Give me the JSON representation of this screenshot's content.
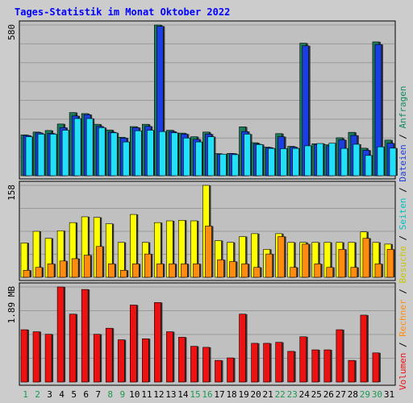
{
  "chart_data": {
    "type": "bar",
    "title": "Tages-Statistik im Monat Oktober 2022",
    "days": [
      "1",
      "2",
      "3",
      "4",
      "5",
      "6",
      "7",
      "8",
      "9",
      "10",
      "11",
      "12",
      "13",
      "14",
      "15",
      "16",
      "17",
      "18",
      "19",
      "20",
      "21",
      "22",
      "23",
      "24",
      "25",
      "26",
      "27",
      "28",
      "29",
      "30",
      "31"
    ],
    "weekend_days": [
      "1",
      "2",
      "8",
      "9",
      "15",
      "16",
      "22",
      "23",
      "29",
      "30"
    ],
    "panels": [
      {
        "id": "anfragen",
        "max_label": "580",
        "ymax": 580,
        "series": [
          {
            "name": "Anfragen",
            "color": "#1a7a5a",
            "values": [
              157,
              168,
              174,
              199,
              243,
              239,
              198,
              176,
              148,
              189,
              198,
              580,
              175,
              164,
              150,
              168,
              85,
              86,
              188,
              127,
              110,
              162,
              113,
              510,
              123,
              119,
              146,
              167,
              106,
              515,
              137
            ]
          },
          {
            "name": "Dateien",
            "color": "#1a3ee0",
            "values": [
              155,
              165,
              163,
              185,
              230,
              235,
              190,
              168,
              145,
              185,
              190,
              575,
              170,
              160,
              140,
              160,
              83,
              85,
              170,
              122,
              108,
              150,
              110,
              500,
              120,
              115,
              138,
              155,
              98,
              505,
              125
            ]
          },
          {
            "name": "Seiten",
            "color": "#22e0f8",
            "values": [
              150,
              160,
              160,
              175,
              220,
              220,
              185,
              165,
              130,
              173,
              175,
              170,
              165,
              145,
              130,
              150,
              83,
              81,
              160,
              120,
              105,
              104,
              105,
              115,
              124,
              125,
              105,
              121,
              78,
              111,
              106
            ]
          }
        ]
      },
      {
        "id": "besuche",
        "max_label": "158",
        "ymax": 158,
        "series": [
          {
            "name": "Besuche",
            "color": "#ffff00",
            "values": [
              59,
              79,
              67,
              80,
              94,
              104,
              103,
              92,
              60,
              108,
              60,
              94,
              97,
              98,
              97,
              158,
              63,
              60,
              70,
              75,
              48,
              75,
              60,
              60,
              60,
              60,
              60,
              60,
              78,
              60,
              57
            ]
          },
          {
            "name": "Rechner",
            "color": "#ff8c10",
            "values": [
              12,
              17,
              23,
              28,
              32,
              38,
              53,
              23,
              12,
              23,
              40,
              23,
              23,
              23,
              23,
              88,
              30,
              27,
              23,
              17,
              40,
              70,
              17,
              57,
              23,
              17,
              48,
              17,
              67,
              23,
              48
            ]
          }
        ]
      },
      {
        "id": "volumen",
        "max_label": "1.89 MB",
        "ymax": 1.89,
        "series": [
          {
            "name": "Volumen",
            "color": "#ee1111",
            "values": [
              1.04,
              1.0,
              0.95,
              1.89,
              1.35,
              1.84,
              0.95,
              1.07,
              0.84,
              1.53,
              0.86,
              1.58,
              1.0,
              0.89,
              0.71,
              0.69,
              0.43,
              0.48,
              1.35,
              0.77,
              0.77,
              0.79,
              0.61,
              0.9,
              0.64,
              0.64,
              1.04,
              0.43,
              1.33,
              0.58,
              0.0
            ]
          }
        ]
      }
    ],
    "legend_right": [
      {
        "text": "Anfragen",
        "color": "#0f8c5a"
      },
      {
        "text": "Dateien",
        "color": "#1a3ee0"
      },
      {
        "text": "Seiten",
        "color": "#00c0c0"
      },
      {
        "text": "Besuche",
        "color": "#c8c800"
      },
      {
        "text": "Rechner",
        "color": "#ff8c10"
      },
      {
        "text": "Volumen",
        "color": "#ee1111"
      }
    ],
    "legend_separator": " / ",
    "colors": {
      "background": "#cccccc",
      "plot_background": "#c0c0c0",
      "title": "#0000ff",
      "weekend_label": "#1a9a50",
      "weekday_label": "#000000"
    }
  }
}
